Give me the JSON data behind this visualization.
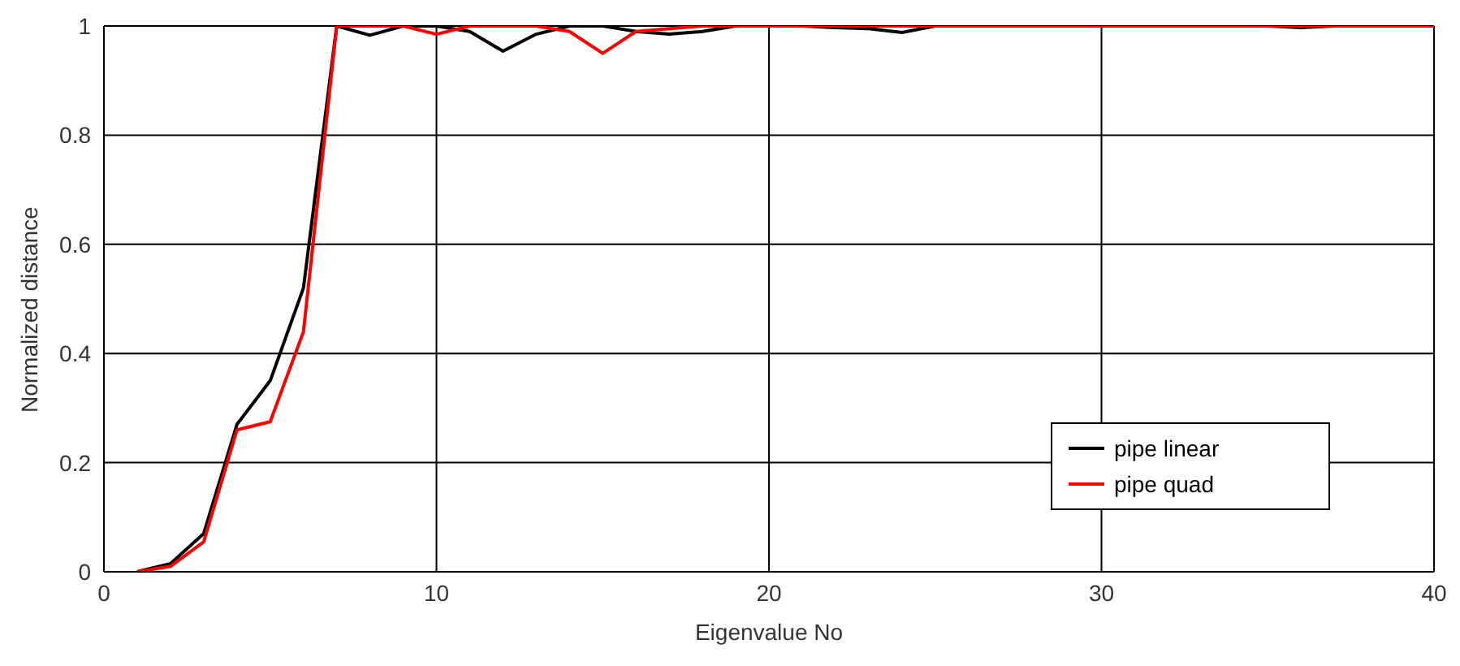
{
  "chart_data": {
    "type": "line",
    "xlabel": "Eigenvalue No",
    "ylabel": "Normalized distance",
    "x": [
      1,
      2,
      3,
      4,
      5,
      6,
      7,
      8,
      9,
      10,
      11,
      12,
      13,
      14,
      15,
      16,
      17,
      18,
      19,
      20,
      21,
      22,
      23,
      24,
      25,
      26,
      27,
      28,
      29,
      30,
      31,
      32,
      33,
      34,
      35,
      36,
      37,
      38,
      39,
      40
    ],
    "series": [
      {
        "name": "pipe linear",
        "color": "#000000",
        "values": [
          0,
          0.015,
          0.07,
          0.27,
          0.35,
          0.52,
          1,
          0.983,
          1,
          1,
          0.99,
          0.954,
          0.985,
          1,
          1,
          0.99,
          0.985,
          0.99,
          1,
          1,
          1,
          0.997,
          0.995,
          0.988,
          1,
          1,
          1,
          1,
          1,
          1,
          1,
          1,
          1,
          1,
          1,
          0.997,
          1,
          1,
          1,
          1
        ]
      },
      {
        "name": "pipe quad",
        "color": "#ff0000",
        "values": [
          0,
          0.01,
          0.055,
          0.26,
          0.275,
          0.44,
          1,
          1,
          1,
          0.985,
          1,
          1,
          1,
          0.99,
          0.95,
          0.99,
          0.995,
          1,
          1,
          1,
          1,
          1,
          1,
          1,
          1,
          1,
          1,
          1,
          1,
          1,
          1,
          1,
          1,
          1,
          1,
          1,
          1,
          1,
          1,
          1
        ]
      }
    ],
    "xlim": [
      0,
      40
    ],
    "xticks": [
      0,
      10,
      20,
      30,
      40
    ],
    "ylim": [
      0,
      1
    ],
    "yticks": [
      0,
      0.2,
      0.4,
      0.6,
      0.8,
      1
    ],
    "grid": true,
    "legend": "bottom right",
    "marker": "none",
    "line_style": "solid"
  }
}
